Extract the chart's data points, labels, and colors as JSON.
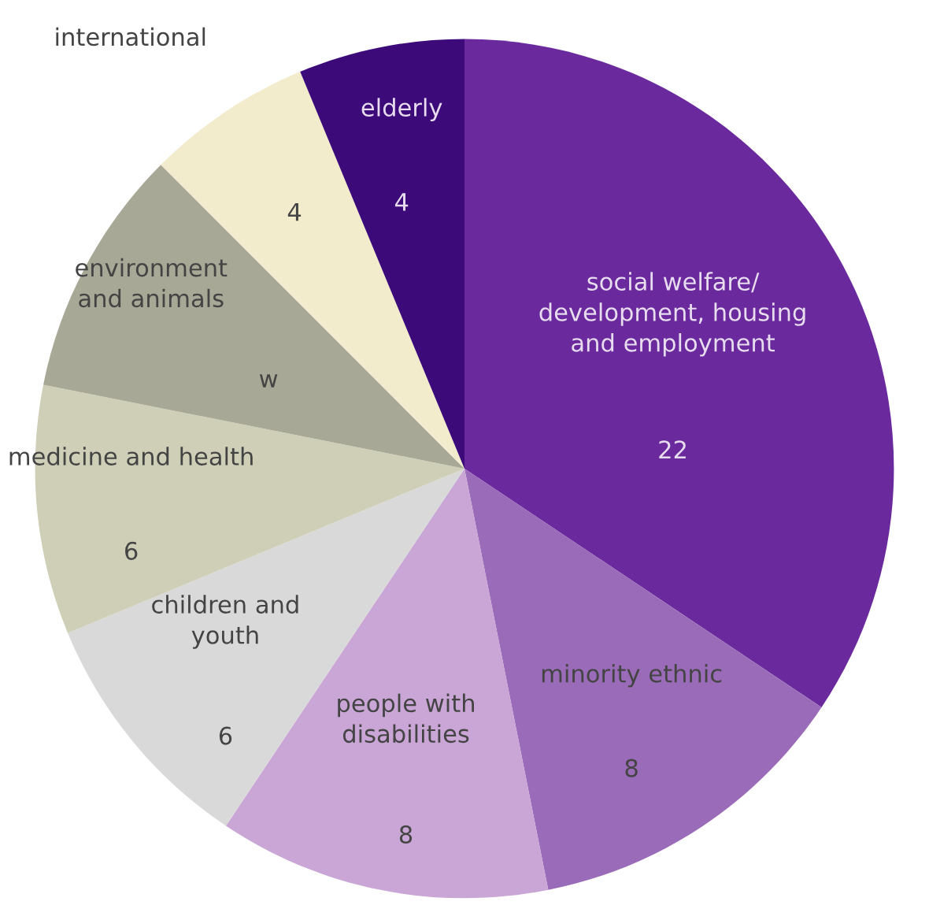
{
  "chart_data": {
    "type": "pie",
    "categories": [
      "social welfare/\ndevelopment, housing\nand employment",
      "minority ethnic",
      "people with\ndisabilities",
      "children and\nyouth",
      "medicine and health",
      "environment\nand animals",
      "international",
      "elderly"
    ],
    "values": [
      22,
      8,
      8,
      6,
      6,
      6,
      4,
      4
    ],
    "value_labels": [
      "22",
      "8",
      "8",
      "6",
      "6",
      "w",
      "4",
      "4"
    ],
    "colors": [
      "#6a2a9e",
      "#9a6bb8",
      "#c9a6d6",
      "#d9d9d9",
      "#cfcfb8",
      "#a8a896",
      "#f2ebcc",
      "#3d0a7a"
    ]
  }
}
